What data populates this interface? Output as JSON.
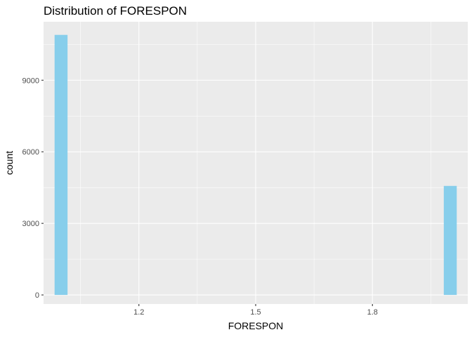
{
  "chart_data": {
    "type": "bar",
    "title": "Distribution of FORESPON",
    "xlabel": "FORESPON",
    "ylabel": "count",
    "xlim": [
      0.955,
      2.045
    ],
    "ylim": [
      -380,
      11450
    ],
    "x_ticks": [
      1.2,
      1.5,
      1.8
    ],
    "x_tick_labels": [
      "1.2",
      "1.5",
      "1.8"
    ],
    "y_ticks": [
      0,
      3000,
      6000,
      9000
    ],
    "y_tick_labels": [
      "0",
      "3000",
      "6000",
      "9000"
    ],
    "bin_width": 0.0333,
    "bars": [
      {
        "x": 1.0,
        "count": 10900
      },
      {
        "x": 2.0,
        "count": 4570
      }
    ],
    "grid": true,
    "colors": {
      "bar": "#87CEEB",
      "panel_background": "#EBEBEB",
      "grid": "#FFFFFF"
    }
  }
}
